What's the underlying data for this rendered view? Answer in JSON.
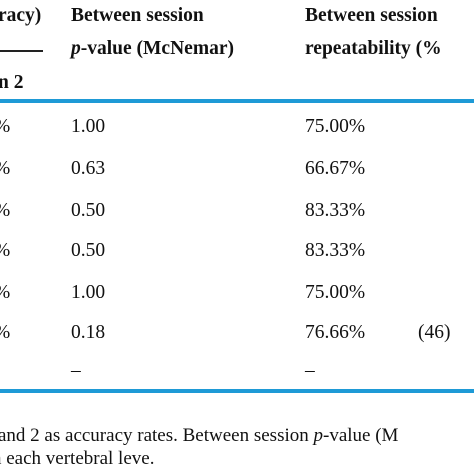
{
  "header": {
    "col1_line1": "racy)",
    "col1_line2": "n 2",
    "col2_line1": "Between session",
    "col2_line2_italic": "p",
    "col2_line2_rest": "-value (McNemar)",
    "col3_line1": "Between session",
    "col3_line2": "repeatability (%"
  },
  "rows": [
    {
      "c1": "%",
      "c2": "1.00",
      "c3": "75.00%",
      "c4": ""
    },
    {
      "c1": "%",
      "c2": "0.63",
      "c3": "66.67%",
      "c4": ""
    },
    {
      "c1": "%",
      "c2": "0.50",
      "c3": "83.33%",
      "c4": ""
    },
    {
      "c1": "%",
      "c2": "0.50",
      "c3": "83.33%",
      "c4": ""
    },
    {
      "c1": "%",
      "c2": "1.00",
      "c3": "75.00%",
      "c4": ""
    },
    {
      "c1": "%",
      "c2": "0.18",
      "c3": "76.66%",
      "c4": "(46)"
    },
    {
      "c1": "",
      "c2": "–",
      "c3": "–",
      "c4": ""
    }
  ],
  "footnote": {
    "line1_a": "and 2 as accuracy rates. Between session ",
    "line1_italic": "p",
    "line1_b": "-value (M",
    "line2": "n each vertebral leve."
  },
  "colors": {
    "accent_rule": "#1e9ad6",
    "text": "#111111"
  }
}
